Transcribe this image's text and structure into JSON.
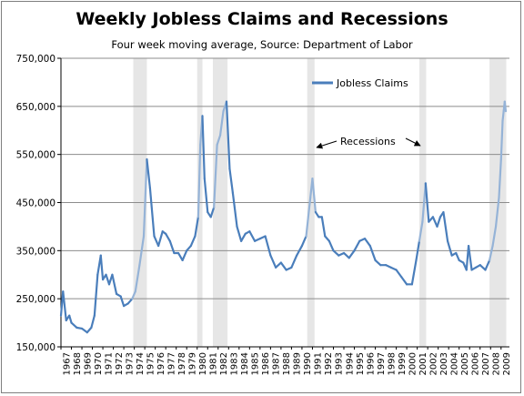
{
  "chart_data": {
    "type": "line",
    "title": "Weekly Jobless Claims and Recessions",
    "subtitle": "Four week moving average, Source: Department of Labor",
    "xlabel": "",
    "ylabel": "",
    "ylim": [
      150000,
      750000
    ],
    "xlim": [
      1967,
      2009.8
    ],
    "y_ticks": [
      "150,000",
      "250,000",
      "350,000",
      "450,000",
      "550,000",
      "650,000",
      "750,000"
    ],
    "x_ticks": [
      "1967",
      "1968",
      "1969",
      "1970",
      "1971",
      "1972",
      "1973",
      "1974",
      "1975",
      "1976",
      "1977",
      "1978",
      "1979",
      "1980",
      "1981",
      "1982",
      "1983",
      "1984",
      "1985",
      "1986",
      "1987",
      "1988",
      "1989",
      "1990",
      "1991",
      "1992",
      "1993",
      "1994",
      "1995",
      "1996",
      "1997",
      "1998",
      "1999",
      "2000",
      "2001",
      "2002",
      "2003",
      "2004",
      "2005",
      "2006",
      "2007",
      "2008",
      "2009"
    ],
    "grid": "horizontal",
    "legend_position": "top-right",
    "series": [
      {
        "name": "Jobless Claims",
        "color": "#4a7ebb",
        "x": [
          1967.0,
          1967.2,
          1967.5,
          1967.8,
          1968.0,
          1968.5,
          1969.0,
          1969.5,
          1969.9,
          1970.2,
          1970.5,
          1970.8,
          1971.0,
          1971.3,
          1971.6,
          1971.9,
          1972.3,
          1972.7,
          1973.0,
          1973.4,
          1973.8,
          1974.1,
          1974.5,
          1974.9,
          1975.2,
          1975.5,
          1975.9,
          1976.3,
          1976.7,
          1977.0,
          1977.4,
          1977.8,
          1978.2,
          1978.6,
          1979.0,
          1979.4,
          1979.8,
          1980.1,
          1980.3,
          1980.5,
          1980.7,
          1981.0,
          1981.3,
          1981.6,
          1981.9,
          1982.2,
          1982.5,
          1982.8,
          1983.1,
          1983.4,
          1983.8,
          1984.2,
          1984.6,
          1985.0,
          1985.5,
          1986.0,
          1986.5,
          1987.0,
          1987.5,
          1988.0,
          1988.5,
          1989.0,
          1989.5,
          1990.0,
          1990.4,
          1990.8,
          1991.0,
          1991.3,
          1991.6,
          1991.9,
          1992.2,
          1992.6,
          1993.0,
          1993.5,
          1994.0,
          1994.5,
          1995.0,
          1995.5,
          1996.0,
          1996.5,
          1997.0,
          1997.5,
          1998.0,
          1998.5,
          1999.0,
          1999.5,
          2000.0,
          2000.5,
          2000.9,
          2001.2,
          2001.5,
          2001.8,
          2002.1,
          2002.5,
          2002.9,
          2003.2,
          2003.5,
          2003.9,
          2004.3,
          2004.7,
          2005.0,
          2005.4,
          2005.7,
          2005.9,
          2006.2,
          2006.6,
          2007.0,
          2007.5,
          2007.9,
          2008.2,
          2008.5,
          2008.8,
          2009.0,
          2009.15,
          2009.25,
          2009.35,
          2009.45
        ],
        "values": [
          215000,
          265000,
          205000,
          215000,
          200000,
          190000,
          188000,
          180000,
          190000,
          215000,
          300000,
          340000,
          290000,
          300000,
          280000,
          300000,
          260000,
          255000,
          235000,
          240000,
          250000,
          265000,
          320000,
          380000,
          540000,
          480000,
          380000,
          360000,
          390000,
          385000,
          370000,
          345000,
          345000,
          330000,
          350000,
          360000,
          380000,
          420000,
          570000,
          630000,
          500000,
          430000,
          420000,
          440000,
          570000,
          590000,
          640000,
          660000,
          520000,
          470000,
          400000,
          370000,
          385000,
          390000,
          370000,
          375000,
          380000,
          340000,
          315000,
          325000,
          310000,
          315000,
          340000,
          360000,
          380000,
          460000,
          500000,
          430000,
          420000,
          420000,
          380000,
          370000,
          350000,
          340000,
          345000,
          335000,
          350000,
          370000,
          375000,
          360000,
          330000,
          320000,
          320000,
          315000,
          310000,
          295000,
          280000,
          280000,
          330000,
          370000,
          410000,
          490000,
          410000,
          420000,
          400000,
          420000,
          430000,
          370000,
          340000,
          345000,
          330000,
          325000,
          310000,
          360000,
          310000,
          315000,
          320000,
          310000,
          330000,
          360000,
          400000,
          460000,
          540000,
          620000,
          640000,
          660000,
          640000
        ]
      }
    ],
    "recessions": [
      [
        1973.9,
        1975.2
      ],
      [
        1980.0,
        1980.5
      ],
      [
        1981.5,
        1982.9
      ],
      [
        1990.5,
        1991.2
      ],
      [
        2001.2,
        2001.85
      ],
      [
        2007.9,
        2009.5
      ]
    ],
    "annotations": [
      {
        "text": "Recessions"
      }
    ],
    "colors": {
      "line": "#4a7ebb",
      "line_in_recession": "#95b3d7",
      "recession_band": "#e6e6e6",
      "grid": "#8c8c8c"
    }
  },
  "legend": {
    "label": "Jobless Claims"
  },
  "annotation": {
    "label": "Recessions"
  }
}
